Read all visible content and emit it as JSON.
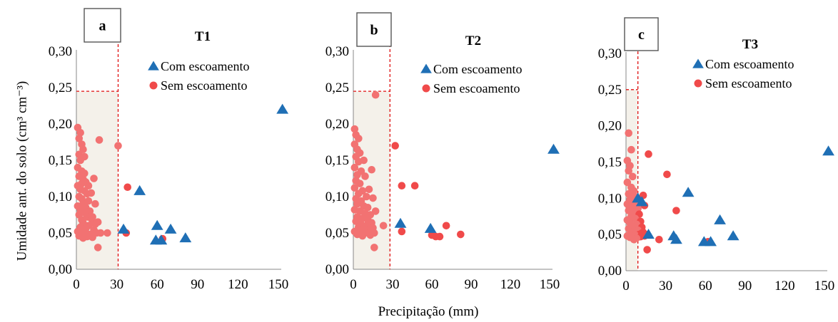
{
  "shared": {
    "ylabel": "Umidade ant. do solo (cm³ cm⁻³)",
    "xlabel": "Precipitação (mm)",
    "legend": [
      "Com escoamento",
      "Sem escoamento"
    ],
    "colors": {
      "com": "#1f6fb5",
      "sem": "#f04a4a",
      "sem_cluster": "#f27272",
      "shade": "#f4f1ea",
      "ref": "#e01010"
    }
  },
  "chart_data": [
    {
      "type": "scatter",
      "panel": "a",
      "title": "T1",
      "xlim": [
        0,
        150
      ],
      "ylim": [
        0,
        0.3
      ],
      "xticks": [
        "0",
        "30",
        "60",
        "90",
        "120",
        "150"
      ],
      "yticks": [
        "0,00",
        "0,05",
        "0,10",
        "0,15",
        "0,20",
        "0,25",
        "0,30"
      ],
      "threshold_x": 31,
      "threshold_y": 0.245,
      "legend_position": "top-right",
      "series": [
        {
          "name": "Com escoamento",
          "marker": "triangle",
          "points": [
            [
              153,
              0.22
            ],
            [
              47,
              0.108
            ],
            [
              35,
              0.055
            ],
            [
              60,
              0.06
            ],
            [
              59,
              0.04
            ],
            [
              63,
              0.04
            ],
            [
              70,
              0.055
            ],
            [
              81,
              0.043
            ]
          ]
        },
        {
          "name": "Sem escoamento",
          "marker": "circle",
          "points": [
            [
              31,
              0.17
            ],
            [
              38,
              0.113
            ],
            [
              37,
              0.05
            ],
            [
              64,
              0.042
            ],
            [
              17,
              0.178
            ],
            [
              16,
              0.03
            ],
            [
              23,
              0.05
            ],
            [
              18,
              0.05
            ],
            [
              1,
              0.195
            ],
            [
              3,
              0.188
            ],
            [
              2,
              0.18
            ],
            [
              4,
              0.172
            ],
            [
              5,
              0.165
            ],
            [
              2,
              0.158
            ],
            [
              3,
              0.15
            ],
            [
              6,
              0.155
            ],
            [
              1,
              0.14
            ],
            [
              4,
              0.135
            ],
            [
              2,
              0.128
            ],
            [
              5,
              0.124
            ],
            [
              7,
              0.12
            ],
            [
              1,
              0.115
            ],
            [
              3,
              0.11
            ],
            [
              6,
              0.108
            ],
            [
              8,
              0.104
            ],
            [
              2,
              0.1
            ],
            [
              4,
              0.097
            ],
            [
              9,
              0.094
            ],
            [
              5,
              0.09
            ],
            [
              1,
              0.087
            ],
            [
              7,
              0.085
            ],
            [
              3,
              0.082
            ],
            [
              10,
              0.08
            ],
            [
              6,
              0.078
            ],
            [
              2,
              0.075
            ],
            [
              8,
              0.072
            ],
            [
              11,
              0.07
            ],
            [
              4,
              0.068
            ],
            [
              12,
              0.066
            ],
            [
              5,
              0.064
            ],
            [
              14,
              0.062
            ],
            [
              9,
              0.06
            ],
            [
              3,
              0.058
            ],
            [
              7,
              0.056
            ],
            [
              13,
              0.054
            ],
            [
              1,
              0.052
            ],
            [
              6,
              0.05
            ],
            [
              15,
              0.05
            ],
            [
              10,
              0.048
            ],
            [
              2,
              0.046
            ],
            [
              8,
              0.045
            ],
            [
              12,
              0.044
            ],
            [
              5,
              0.043
            ],
            [
              13,
              0.125
            ],
            [
              11,
              0.105
            ],
            [
              14,
              0.09
            ],
            [
              12,
              0.072
            ],
            [
              16,
              0.065
            ],
            [
              4,
              0.118
            ],
            [
              9,
              0.115
            ],
            [
              6,
              0.132
            ]
          ]
        }
      ]
    },
    {
      "type": "scatter",
      "panel": "b",
      "title": "T2",
      "xlim": [
        0,
        150
      ],
      "ylim": [
        0,
        0.3
      ],
      "xticks": [
        "0",
        "30",
        "60",
        "90",
        "120",
        "150"
      ],
      "yticks": [
        "0,00",
        "0,05",
        "0,10",
        "0,15",
        "0,20",
        "0,25",
        "0,30"
      ],
      "threshold_x": 28,
      "threshold_y": 0.245,
      "legend_position": "top-right",
      "series": [
        {
          "name": "Com escoamento",
          "marker": "triangle",
          "points": [
            [
              153,
              0.165
            ],
            [
              36,
              0.063
            ],
            [
              59,
              0.056
            ]
          ]
        },
        {
          "name": "Sem escoamento",
          "marker": "circle",
          "points": [
            [
              32,
              0.17
            ],
            [
              37,
              0.115
            ],
            [
              47,
              0.115
            ],
            [
              37,
              0.052
            ],
            [
              60,
              0.047
            ],
            [
              63,
              0.045
            ],
            [
              66,
              0.045
            ],
            [
              71,
              0.06
            ],
            [
              82,
              0.048
            ],
            [
              17,
              0.24
            ],
            [
              16,
              0.03
            ],
            [
              23,
              0.06
            ],
            [
              1,
              0.193
            ],
            [
              2,
              0.185
            ],
            [
              4,
              0.18
            ],
            [
              1,
              0.172
            ],
            [
              3,
              0.165
            ],
            [
              5,
              0.16
            ],
            [
              2,
              0.155
            ],
            [
              4,
              0.148
            ],
            [
              8,
              0.15
            ],
            [
              1,
              0.14
            ],
            [
              6,
              0.135
            ],
            [
              3,
              0.13
            ],
            [
              9,
              0.128
            ],
            [
              2,
              0.122
            ],
            [
              5,
              0.118
            ],
            [
              1,
              0.112
            ],
            [
              7,
              0.108
            ],
            [
              4,
              0.104
            ],
            [
              10,
              0.1
            ],
            [
              2,
              0.097
            ],
            [
              6,
              0.094
            ],
            [
              3,
              0.09
            ],
            [
              8,
              0.087
            ],
            [
              11,
              0.085
            ],
            [
              1,
              0.082
            ],
            [
              5,
              0.08
            ],
            [
              9,
              0.077
            ],
            [
              13,
              0.075
            ],
            [
              3,
              0.072
            ],
            [
              7,
              0.07
            ],
            [
              11,
              0.068
            ],
            [
              2,
              0.066
            ],
            [
              14,
              0.064
            ],
            [
              6,
              0.062
            ],
            [
              10,
              0.06
            ],
            [
              4,
              0.058
            ],
            [
              15,
              0.057
            ],
            [
              8,
              0.055
            ],
            [
              12,
              0.054
            ],
            [
              1,
              0.052
            ],
            [
              5,
              0.051
            ],
            [
              9,
              0.05
            ],
            [
              16,
              0.05
            ],
            [
              3,
              0.048
            ],
            [
              13,
              0.047
            ],
            [
              7,
              0.046
            ],
            [
              14,
              0.137
            ],
            [
              12,
              0.11
            ],
            [
              17,
              0.08
            ],
            [
              15,
              0.098
            ]
          ]
        }
      ]
    },
    {
      "type": "scatter",
      "panel": "c",
      "title": "T3",
      "xlim": [
        0,
        150
      ],
      "ylim": [
        0,
        0.3
      ],
      "xticks": [
        "0",
        "30",
        "60",
        "90",
        "120",
        "150"
      ],
      "yticks": [
        "0,00",
        "0,05",
        "0,10",
        "0,15",
        "0,20",
        "0,25",
        "0,30"
      ],
      "threshold_x": 9,
      "threshold_y": 0.25,
      "legend_position": "top-right",
      "series": [
        {
          "name": "Com escoamento",
          "marker": "triangle",
          "points": [
            [
              153,
              0.165
            ],
            [
              47,
              0.108
            ],
            [
              71,
              0.07
            ],
            [
              81,
              0.048
            ],
            [
              36,
              0.048
            ],
            [
              38,
              0.043
            ],
            [
              59,
              0.04
            ],
            [
              64,
              0.04
            ],
            [
              17,
              0.05
            ],
            [
              9,
              0.1
            ],
            [
              12,
              0.095
            ]
          ]
        },
        {
          "name": "Sem escoamento",
          "marker": "circle",
          "points": [
            [
              2,
              0.19
            ],
            [
              4,
              0.167
            ],
            [
              17,
              0.161
            ],
            [
              31,
              0.133
            ],
            [
              38,
              0.083
            ],
            [
              16,
              0.029
            ],
            [
              25,
              0.043
            ],
            [
              62,
              0.04
            ],
            [
              13,
              0.104
            ],
            [
              14,
              0.09
            ],
            [
              1,
              0.152
            ],
            [
              3,
              0.145
            ],
            [
              2,
              0.138
            ],
            [
              5,
              0.13
            ],
            [
              1,
              0.122
            ],
            [
              4,
              0.115
            ],
            [
              6,
              0.11
            ],
            [
              2,
              0.106
            ],
            [
              7,
              0.102
            ],
            [
              3,
              0.098
            ],
            [
              8,
              0.095
            ],
            [
              1,
              0.092
            ],
            [
              5,
              0.089
            ],
            [
              9,
              0.086
            ],
            [
              2,
              0.083
            ],
            [
              6,
              0.08
            ],
            [
              10,
              0.078
            ],
            [
              4,
              0.075
            ],
            [
              7,
              0.072
            ],
            [
              1,
              0.07
            ],
            [
              11,
              0.068
            ],
            [
              3,
              0.066
            ],
            [
              8,
              0.064
            ],
            [
              5,
              0.062
            ],
            [
              12,
              0.06
            ],
            [
              2,
              0.058
            ],
            [
              9,
              0.056
            ],
            [
              6,
              0.055
            ],
            [
              13,
              0.053
            ],
            [
              4,
              0.052
            ],
            [
              10,
              0.05
            ],
            [
              7,
              0.049
            ],
            [
              1,
              0.048
            ],
            [
              11,
              0.047
            ],
            [
              3,
              0.046
            ],
            [
              8,
              0.045
            ],
            [
              14,
              0.048
            ],
            [
              6,
              0.043
            ],
            [
              12,
              0.052
            ],
            [
              15,
              0.05
            ]
          ]
        }
      ]
    }
  ]
}
